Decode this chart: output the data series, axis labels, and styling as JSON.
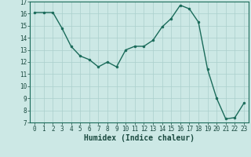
{
  "x": [
    0,
    1,
    2,
    3,
    4,
    5,
    6,
    7,
    8,
    9,
    10,
    11,
    12,
    13,
    14,
    15,
    16,
    17,
    18,
    19,
    20,
    21,
    22,
    23
  ],
  "y": [
    16.1,
    16.1,
    16.1,
    14.8,
    13.3,
    12.5,
    12.2,
    11.6,
    12.0,
    11.6,
    13.0,
    13.3,
    13.3,
    13.8,
    14.9,
    15.6,
    16.7,
    16.4,
    15.3,
    11.4,
    9.0,
    7.3,
    7.4,
    8.6
  ],
  "line_color": "#1a6b5a",
  "marker_color": "#1a6b5a",
  "bg_color": "#cce8e5",
  "grid_color": "#aacfcc",
  "xlabel": "Humidex (Indice chaleur)",
  "xlim": [
    -0.5,
    23.5
  ],
  "ylim": [
    7,
    17
  ],
  "yticks": [
    7,
    8,
    9,
    10,
    11,
    12,
    13,
    14,
    15,
    16,
    17
  ],
  "xticks": [
    0,
    1,
    2,
    3,
    4,
    5,
    6,
    7,
    8,
    9,
    10,
    11,
    12,
    13,
    14,
    15,
    16,
    17,
    18,
    19,
    20,
    21,
    22,
    23
  ],
  "tick_label_color": "#1a4a40",
  "tick_fontsize": 5.5,
  "xlabel_fontsize": 7.0,
  "xlabel_color": "#1a4a40"
}
